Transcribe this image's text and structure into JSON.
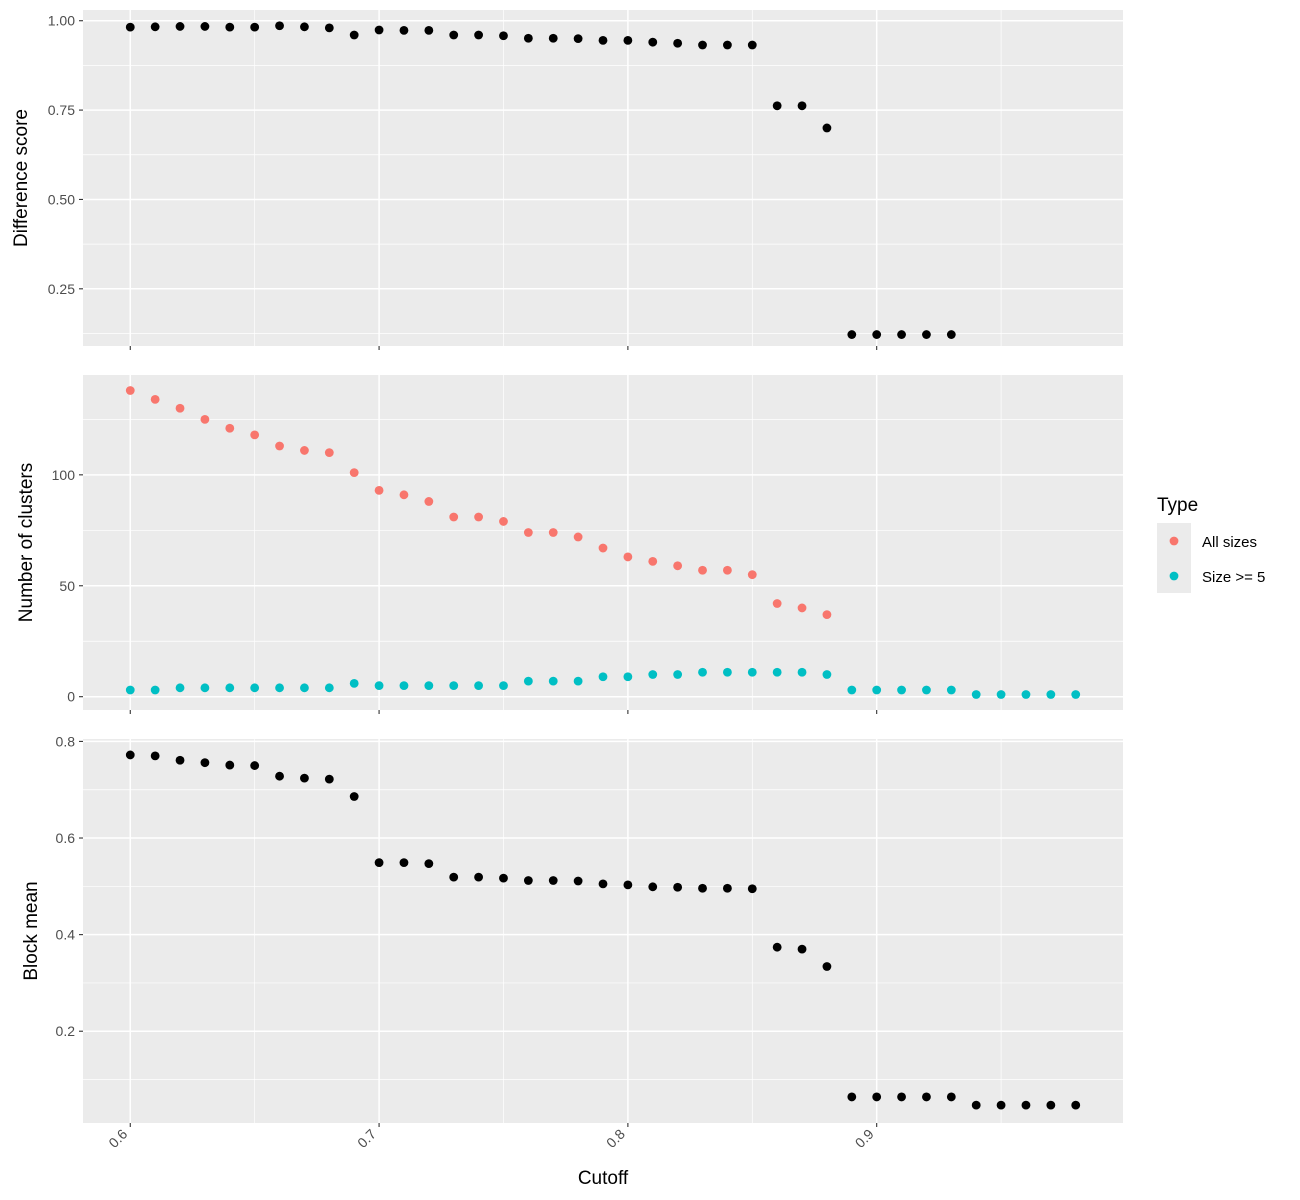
{
  "chart_data": [
    {
      "type": "scatter",
      "panel": "top",
      "ylabel": "Difference score",
      "yticks": [
        0.25,
        0.5,
        0.75,
        1.0
      ],
      "ytick_labels": [
        "0.25",
        "0.50",
        "0.75",
        "1.00"
      ],
      "ylim": [
        0.09,
        1.03
      ],
      "series": [
        {
          "color": "#000000",
          "x": [
            0.6,
            0.61,
            0.62,
            0.63,
            0.64,
            0.65,
            0.66,
            0.67,
            0.68,
            0.69,
            0.7,
            0.71,
            0.72,
            0.73,
            0.74,
            0.75,
            0.76,
            0.77,
            0.78,
            0.79,
            0.8,
            0.81,
            0.82,
            0.83,
            0.84,
            0.85,
            0.86,
            0.87,
            0.88,
            0.89,
            0.9,
            0.91,
            0.92,
            0.93
          ],
          "y": [
            0.982,
            0.983,
            0.984,
            0.984,
            0.982,
            0.982,
            0.986,
            0.983,
            0.98,
            0.96,
            0.974,
            0.973,
            0.973,
            0.96,
            0.96,
            0.958,
            0.951,
            0.951,
            0.95,
            0.945,
            0.945,
            0.94,
            0.937,
            0.932,
            0.932,
            0.932,
            0.762,
            0.762,
            0.7,
            0.122,
            0.122,
            0.122,
            0.122,
            0.122
          ]
        }
      ]
    },
    {
      "type": "scatter",
      "panel": "middle",
      "ylabel": "Number of clusters",
      "yticks": [
        0,
        50,
        100
      ],
      "ytick_labels": [
        "0",
        "50",
        "100"
      ],
      "ylim": [
        -6,
        145
      ],
      "series": [
        {
          "name": "All sizes",
          "color": "#F8766D",
          "x": [
            0.6,
            0.61,
            0.62,
            0.63,
            0.64,
            0.65,
            0.66,
            0.67,
            0.68,
            0.69,
            0.7,
            0.71,
            0.72,
            0.73,
            0.74,
            0.75,
            0.76,
            0.77,
            0.78,
            0.79,
            0.8,
            0.81,
            0.82,
            0.83,
            0.84,
            0.85,
            0.86,
            0.87,
            0.88
          ],
          "y": [
            138,
            134,
            130,
            125,
            121,
            118,
            113,
            111,
            110,
            101,
            93,
            91,
            88,
            81,
            81,
            79,
            74,
            74,
            72,
            67,
            63,
            61,
            59,
            57,
            57,
            55,
            42,
            40,
            37
          ]
        },
        {
          "name": "Size >= 5",
          "color": "#00BFC4",
          "x": [
            0.6,
            0.61,
            0.62,
            0.63,
            0.64,
            0.65,
            0.66,
            0.67,
            0.68,
            0.69,
            0.7,
            0.71,
            0.72,
            0.73,
            0.74,
            0.75,
            0.76,
            0.77,
            0.78,
            0.79,
            0.8,
            0.81,
            0.82,
            0.83,
            0.84,
            0.85,
            0.86,
            0.87,
            0.88,
            0.89,
            0.9,
            0.91,
            0.92,
            0.93,
            0.94,
            0.95,
            0.96,
            0.97,
            0.98
          ],
          "y": [
            3,
            3,
            4,
            4,
            4,
            4,
            4,
            4,
            4,
            6,
            5,
            5,
            5,
            5,
            5,
            5,
            7,
            7,
            7,
            9,
            9,
            10,
            10,
            11,
            11,
            11,
            11,
            11,
            10,
            3,
            3,
            3,
            3,
            3,
            1,
            1,
            1,
            1,
            1
          ]
        }
      ]
    },
    {
      "type": "scatter",
      "panel": "bottom",
      "ylabel": "Block mean",
      "xlabel": "Cutoff",
      "yticks": [
        0.2,
        0.4,
        0.6,
        0.8
      ],
      "ytick_labels": [
        "0.2",
        "0.4",
        "0.6",
        "0.8"
      ],
      "xticks": [
        0.6,
        0.7,
        0.8,
        0.9
      ],
      "xtick_labels": [
        "0.6",
        "0.7",
        "0.8",
        "0.9"
      ],
      "xlim": [
        0.581,
        0.999
      ],
      "ylim": [
        0.01,
        0.805
      ],
      "series": [
        {
          "color": "#000000",
          "x": [
            0.6,
            0.61,
            0.62,
            0.63,
            0.64,
            0.65,
            0.66,
            0.67,
            0.68,
            0.69,
            0.7,
            0.71,
            0.72,
            0.73,
            0.74,
            0.75,
            0.76,
            0.77,
            0.78,
            0.79,
            0.8,
            0.81,
            0.82,
            0.83,
            0.84,
            0.85,
            0.86,
            0.87,
            0.88,
            0.89,
            0.9,
            0.91,
            0.92,
            0.93,
            0.94,
            0.95,
            0.96,
            0.97,
            0.98
          ],
          "y": [
            0.772,
            0.77,
            0.761,
            0.756,
            0.751,
            0.75,
            0.728,
            0.724,
            0.722,
            0.686,
            0.549,
            0.549,
            0.547,
            0.519,
            0.519,
            0.517,
            0.512,
            0.512,
            0.511,
            0.505,
            0.503,
            0.499,
            0.498,
            0.496,
            0.496,
            0.495,
            0.374,
            0.37,
            0.334,
            0.064,
            0.064,
            0.064,
            0.064,
            0.064,
            0.047,
            0.047,
            0.047,
            0.047,
            0.047
          ]
        }
      ]
    }
  ],
  "legend": {
    "title": "Type",
    "items": [
      {
        "label": "All sizes",
        "color": "#F8766D"
      },
      {
        "label": "Size >= 5",
        "color": "#00BFC4"
      }
    ]
  }
}
